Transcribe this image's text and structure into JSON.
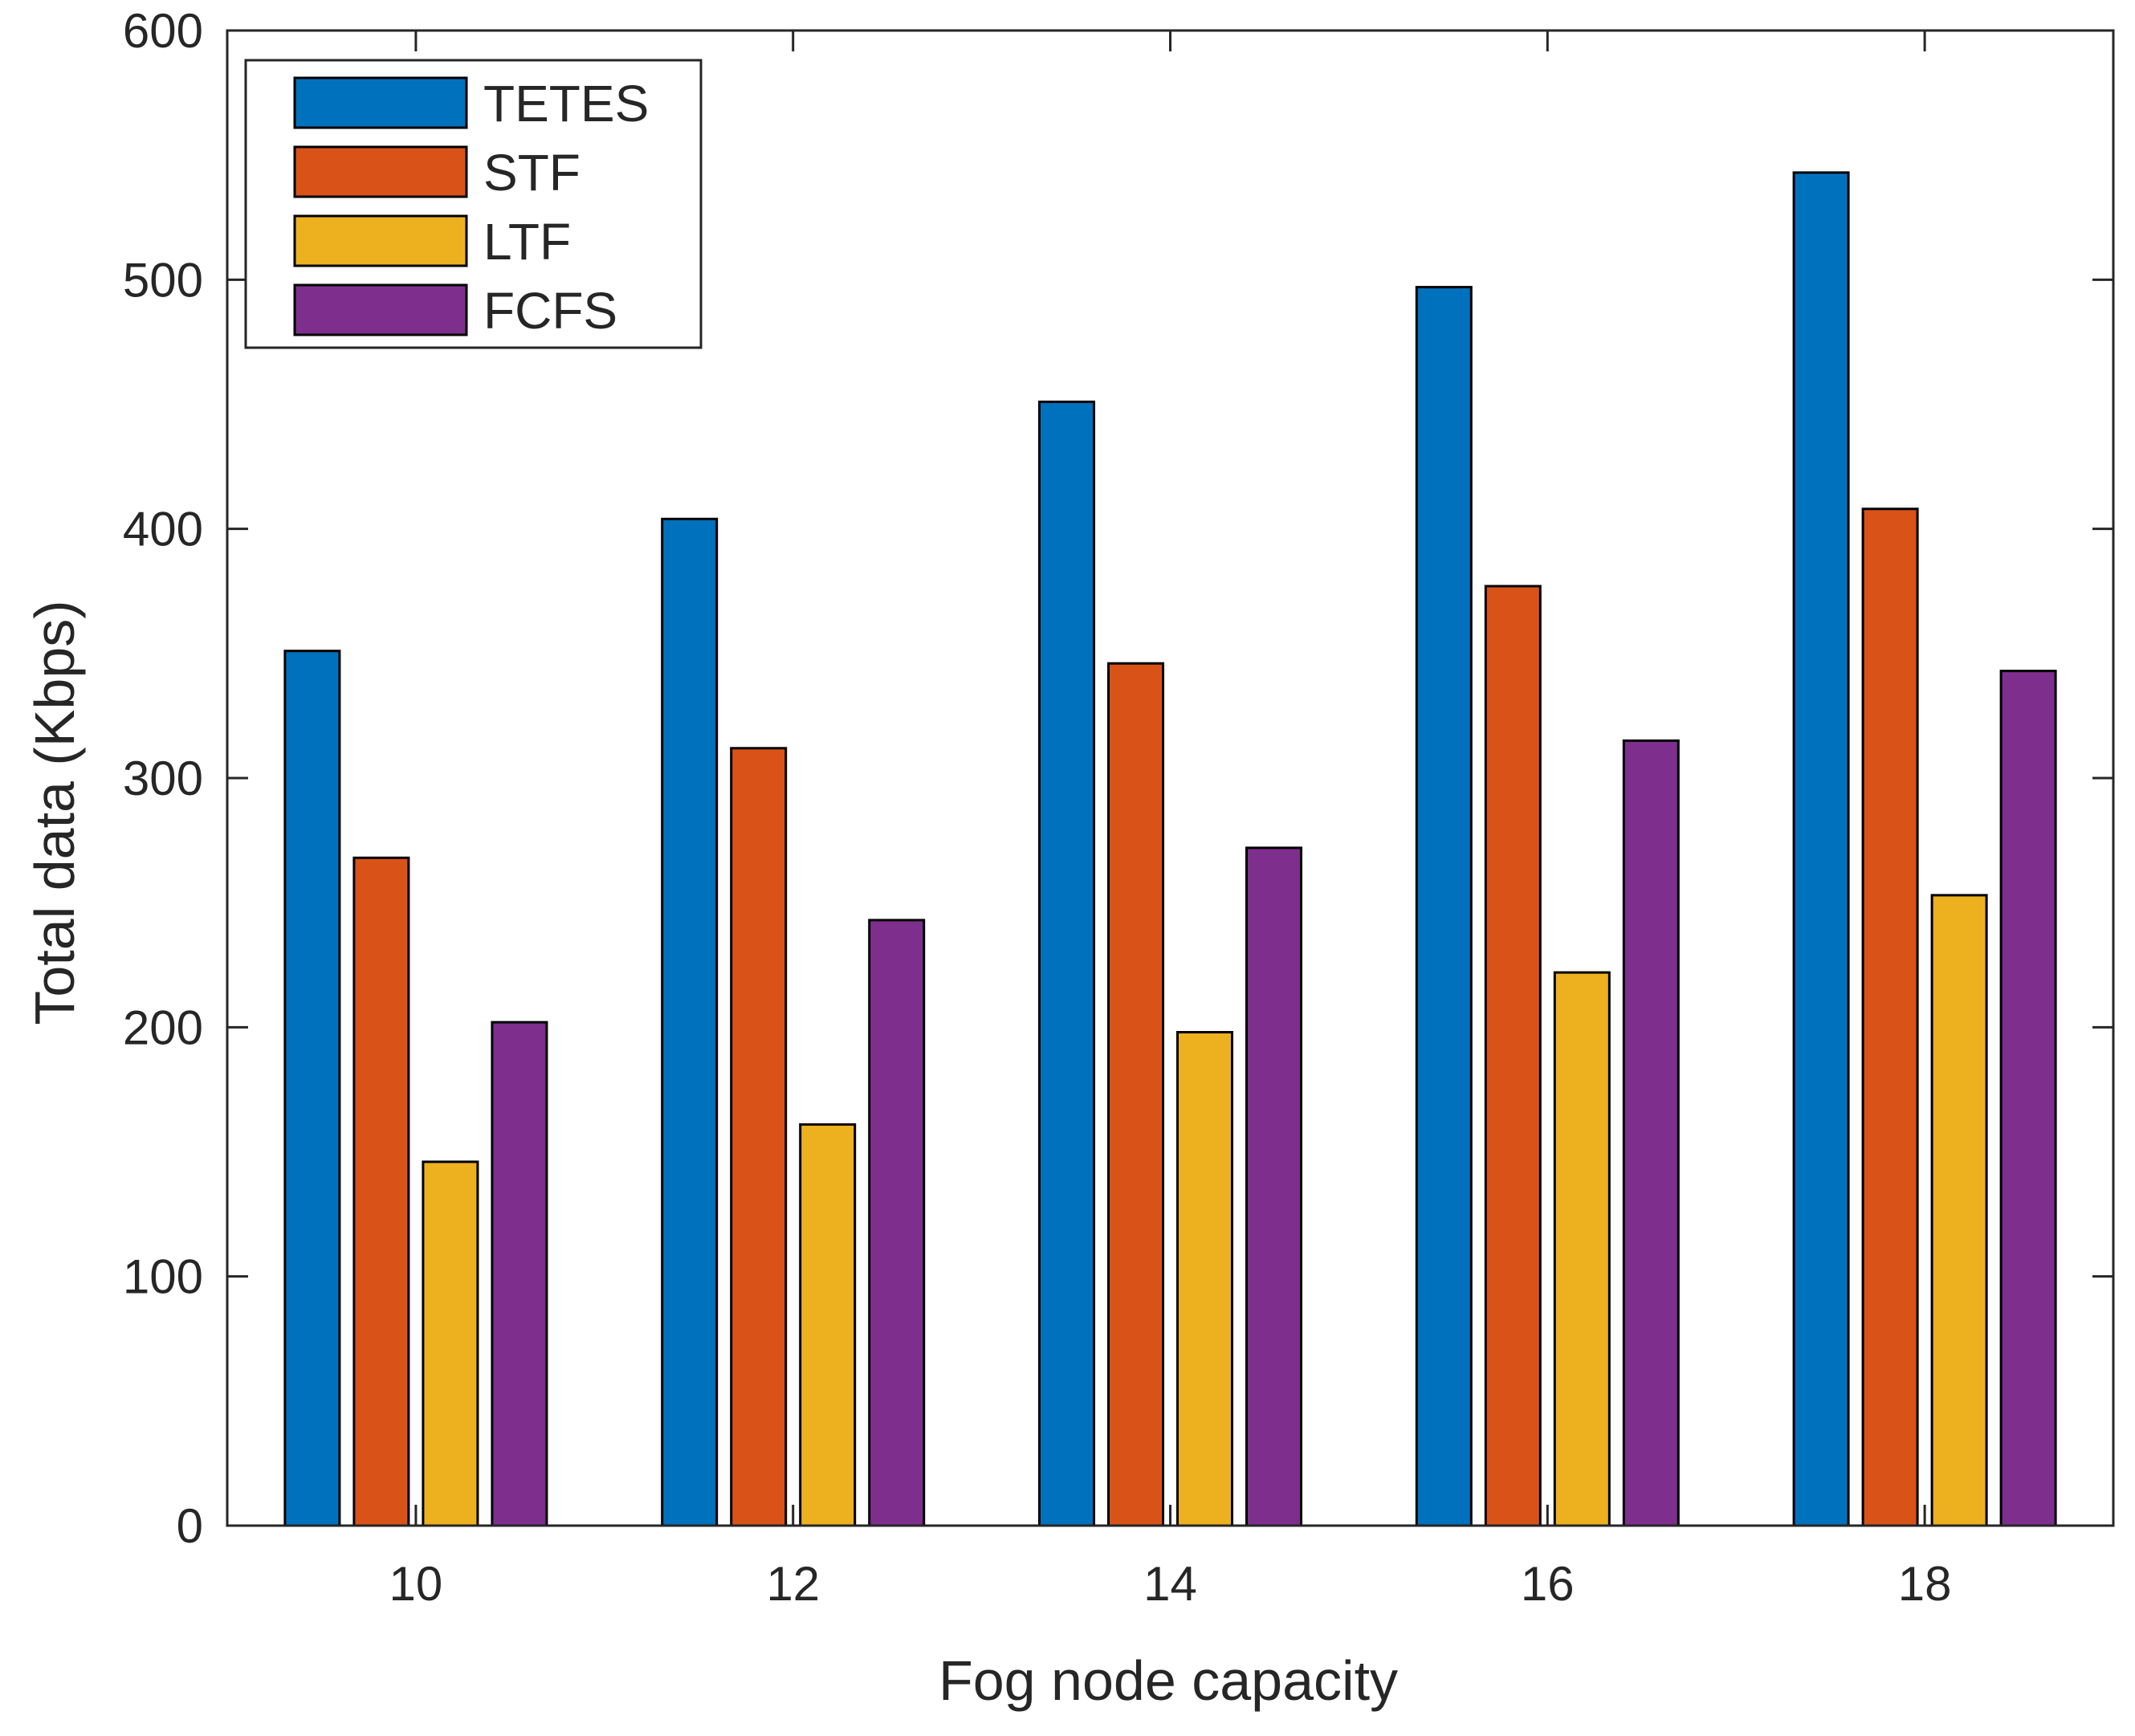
{
  "chart_data": {
    "type": "bar",
    "title": "",
    "xlabel": "Fog node capacity",
    "ylabel": "Total data (Kbps)",
    "categories": [
      "10",
      "12",
      "14",
      "16",
      "18"
    ],
    "ylim": [
      0,
      600
    ],
    "yticks": [
      "0",
      "100",
      "200",
      "300",
      "400",
      "500",
      "600"
    ],
    "grid": false,
    "legend_position": "top-left",
    "series": [
      {
        "name": "TETES",
        "color": "#0072BD",
        "values": [
          351,
          404,
          451,
          497,
          543
        ]
      },
      {
        "name": "STF",
        "color": "#D95319",
        "values": [
          268,
          312,
          346,
          377,
          408
        ]
      },
      {
        "name": "LTF",
        "color": "#EDB120",
        "values": [
          146,
          161,
          198,
          222,
          253
        ]
      },
      {
        "name": "FCFS",
        "color": "#7E2F8E",
        "values": [
          202,
          243,
          272,
          315,
          343
        ]
      }
    ]
  }
}
